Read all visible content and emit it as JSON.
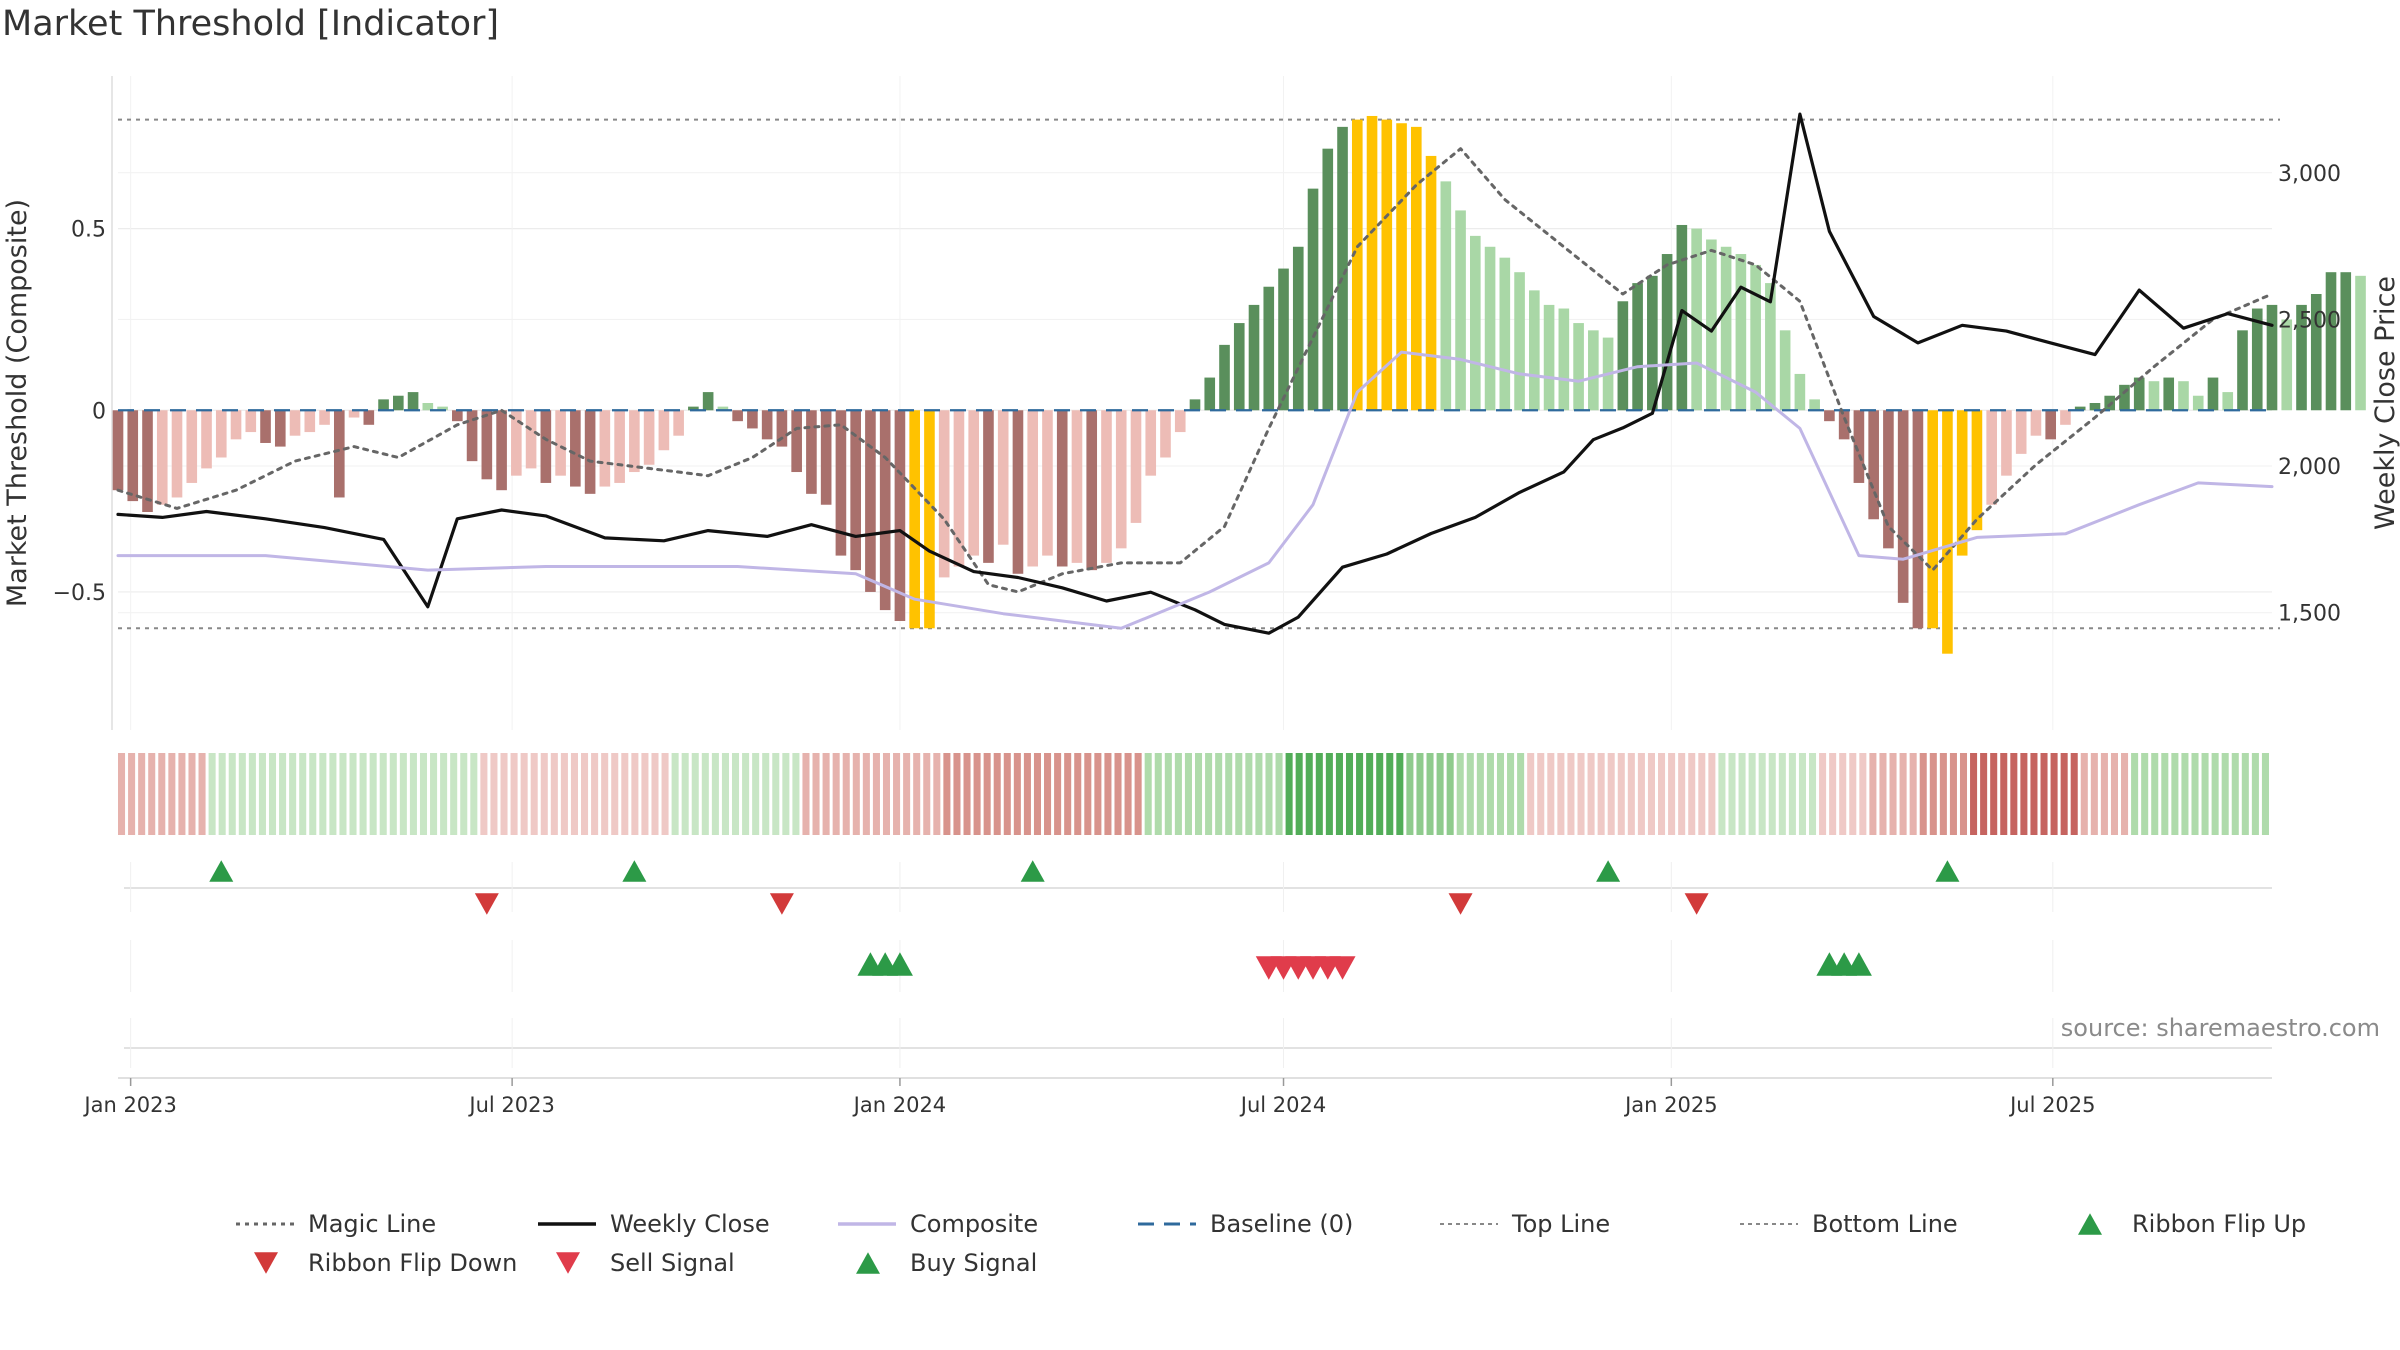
{
  "title": "Market Threshold [Indicator]",
  "source_text": "source: sharemaestro.com",
  "colors": {
    "up_strong": "#5a8f5c",
    "up_light": "#a9d7a6",
    "down_strong": "#a9706c",
    "down_light": "#edbcb6",
    "extreme": "#ffc200",
    "close": "#111111",
    "composite": "#c0b6e6",
    "magic": "#666666",
    "baseline": "#2f6a9c",
    "buy": "#2c9a47",
    "sell": "#d23a3a",
    "ribbon_green": [
      "#dff0dd",
      "#c8e6c5",
      "#afdbab",
      "#8fcb8d",
      "#52ad58"
    ],
    "ribbon_red": [
      "#f6dcda",
      "#efc9c6",
      "#e6b2ad",
      "#d8938c",
      "#c66460"
    ]
  },
  "chart_data": {
    "type": "bar",
    "subtype": "composite indicator histogram with price overlay, ribbon and signal strips",
    "xlabel": "",
    "ylabel_left": "Market Threshold (Composite)",
    "ylabel_right": "Weekly Close Price",
    "ylim_left": [
      -0.88,
      0.92
    ],
    "ylim_right": [
      1100,
      3330
    ],
    "x_range": [
      "2022-12-26",
      "2025-10-13"
    ],
    "x_ticks": [
      {
        "date": "2023-01-01",
        "label": "Jan 2023"
      },
      {
        "date": "2023-07-01",
        "label": "Jul 2023"
      },
      {
        "date": "2024-01-01",
        "label": "Jan 2024"
      },
      {
        "date": "2024-07-01",
        "label": "Jul 2024"
      },
      {
        "date": "2025-01-01",
        "label": "Jan 2025"
      },
      {
        "date": "2025-07-01",
        "label": "Jul 2025"
      }
    ],
    "y_ticks_left": [
      {
        "value": 0.5,
        "label": "0.5"
      },
      {
        "value": 0,
        "label": "0"
      },
      {
        "value": -0.5,
        "label": "−0.5"
      }
    ],
    "y_ticks_right": [
      {
        "value": 3000,
        "label": "3,000"
      },
      {
        "value": 2500,
        "label": "2,500"
      },
      {
        "value": 2000,
        "label": "2,000"
      },
      {
        "value": 1500,
        "label": "1,500"
      }
    ],
    "top_line": 0.8,
    "bottom_line": -0.6,
    "baseline": 0,
    "grid": true,
    "legend_position": "bottom",
    "series": [
      {
        "name": "Magic Line",
        "style": "dotted",
        "color": "#666666",
        "points": [
          [
            "2022-12-26",
            -0.22
          ],
          [
            "2023-01-23",
            -0.27
          ],
          [
            "2023-02-20",
            -0.22
          ],
          [
            "2023-03-20",
            -0.14
          ],
          [
            "2023-04-17",
            -0.1
          ],
          [
            "2023-05-08",
            -0.13
          ],
          [
            "2023-06-05",
            -0.04
          ],
          [
            "2023-06-26",
            0
          ],
          [
            "2023-07-17",
            -0.08
          ],
          [
            "2023-08-07",
            -0.14
          ],
          [
            "2023-09-04",
            -0.16
          ],
          [
            "2023-10-02",
            -0.18
          ],
          [
            "2023-10-23",
            -0.13
          ],
          [
            "2023-11-13",
            -0.05
          ],
          [
            "2023-12-04",
            -0.04
          ],
          [
            "2023-12-25",
            -0.13
          ],
          [
            "2024-01-22",
            -0.3
          ],
          [
            "2024-02-12",
            -0.48
          ],
          [
            "2024-02-26",
            -0.5
          ],
          [
            "2024-03-18",
            -0.45
          ],
          [
            "2024-04-15",
            -0.42
          ],
          [
            "2024-05-13",
            -0.42
          ],
          [
            "2024-06-03",
            -0.32
          ],
          [
            "2024-06-24",
            -0.05
          ],
          [
            "2024-07-15",
            0.2
          ],
          [
            "2024-08-05",
            0.45
          ],
          [
            "2024-09-02",
            0.62
          ],
          [
            "2024-09-23",
            0.72
          ],
          [
            "2024-10-14",
            0.58
          ],
          [
            "2024-11-11",
            0.45
          ],
          [
            "2024-12-09",
            0.32
          ],
          [
            "2024-12-30",
            0.4
          ],
          [
            "2025-01-20",
            0.44
          ],
          [
            "2025-02-10",
            0.4
          ],
          [
            "2025-03-03",
            0.3
          ],
          [
            "2025-03-24",
            -0.02
          ],
          [
            "2025-04-14",
            -0.32
          ],
          [
            "2025-05-05",
            -0.44
          ],
          [
            "2025-05-26",
            -0.3
          ],
          [
            "2025-06-23",
            -0.15
          ],
          [
            "2025-07-21",
            -0.02
          ],
          [
            "2025-08-18",
            0.12
          ],
          [
            "2025-09-15",
            0.25
          ],
          [
            "2025-10-13",
            0.32
          ]
        ]
      },
      {
        "name": "Weekly Close",
        "style": "solid",
        "color": "#111111",
        "points": [
          [
            "2022-12-26",
            1835
          ],
          [
            "2023-01-16",
            1825
          ],
          [
            "2023-02-06",
            1845
          ],
          [
            "2023-03-06",
            1820
          ],
          [
            "2023-04-03",
            1790
          ],
          [
            "2023-05-01",
            1750
          ],
          [
            "2023-05-22",
            1520
          ],
          [
            "2023-06-05",
            1820
          ],
          [
            "2023-06-26",
            1850
          ],
          [
            "2023-07-17",
            1830
          ],
          [
            "2023-08-14",
            1755
          ],
          [
            "2023-09-11",
            1745
          ],
          [
            "2023-10-02",
            1780
          ],
          [
            "2023-10-30",
            1760
          ],
          [
            "2023-11-20",
            1800
          ],
          [
            "2023-12-11",
            1760
          ],
          [
            "2024-01-01",
            1780
          ],
          [
            "2024-01-15",
            1710
          ],
          [
            "2024-02-05",
            1640
          ],
          [
            "2024-02-26",
            1620
          ],
          [
            "2024-03-18",
            1585
          ],
          [
            "2024-04-08",
            1540
          ],
          [
            "2024-04-29",
            1570
          ],
          [
            "2024-05-20",
            1510
          ],
          [
            "2024-06-03",
            1460
          ],
          [
            "2024-06-24",
            1430
          ],
          [
            "2024-07-08",
            1485
          ],
          [
            "2024-07-29",
            1655
          ],
          [
            "2024-08-19",
            1700
          ],
          [
            "2024-09-09",
            1770
          ],
          [
            "2024-09-30",
            1825
          ],
          [
            "2024-10-21",
            1910
          ],
          [
            "2024-11-11",
            1980
          ],
          [
            "2024-11-25",
            2090
          ],
          [
            "2024-12-09",
            2130
          ],
          [
            "2024-12-23",
            2180
          ],
          [
            "2025-01-06",
            2530
          ],
          [
            "2025-01-20",
            2460
          ],
          [
            "2025-02-03",
            2610
          ],
          [
            "2025-02-17",
            2560
          ],
          [
            "2025-03-03",
            3200
          ],
          [
            "2025-03-17",
            2800
          ],
          [
            "2025-04-07",
            2510
          ],
          [
            "2025-04-28",
            2420
          ],
          [
            "2025-05-19",
            2480
          ],
          [
            "2025-06-09",
            2460
          ],
          [
            "2025-06-30",
            2420
          ],
          [
            "2025-07-21",
            2380
          ],
          [
            "2025-08-11",
            2600
          ],
          [
            "2025-09-01",
            2470
          ],
          [
            "2025-09-22",
            2520
          ],
          [
            "2025-10-13",
            2480
          ]
        ]
      },
      {
        "name": "Composite",
        "style": "solid",
        "color": "#c0b6e6",
        "points": [
          [
            "2022-12-26",
            -0.4
          ],
          [
            "2023-03-06",
            -0.4
          ],
          [
            "2023-05-22",
            -0.44
          ],
          [
            "2023-07-17",
            -0.43
          ],
          [
            "2023-10-16",
            -0.43
          ],
          [
            "2023-12-11",
            -0.45
          ],
          [
            "2024-01-08",
            -0.52
          ],
          [
            "2024-02-19",
            -0.56
          ],
          [
            "2024-03-18",
            -0.58
          ],
          [
            "2024-04-15",
            -0.6
          ],
          [
            "2024-05-27",
            -0.5
          ],
          [
            "2024-06-24",
            -0.42
          ],
          [
            "2024-07-15",
            -0.26
          ],
          [
            "2024-08-05",
            0.05
          ],
          [
            "2024-08-26",
            0.16
          ],
          [
            "2024-09-23",
            0.14
          ],
          [
            "2024-10-21",
            0.1
          ],
          [
            "2024-11-18",
            0.08
          ],
          [
            "2024-12-16",
            0.12
          ],
          [
            "2025-01-13",
            0.13
          ],
          [
            "2025-02-10",
            0.05
          ],
          [
            "2025-03-03",
            -0.05
          ],
          [
            "2025-03-31",
            -0.4
          ],
          [
            "2025-04-21",
            -0.41
          ],
          [
            "2025-05-26",
            -0.35
          ],
          [
            "2025-07-07",
            -0.34
          ],
          [
            "2025-08-11",
            -0.26
          ],
          [
            "2025-09-08",
            -0.2
          ],
          [
            "2025-10-13",
            -0.21
          ]
        ]
      }
    ],
    "bars": {
      "start": "2022-12-26",
      "interval_days": 7,
      "values": [
        -0.22,
        -0.25,
        -0.28,
        -0.26,
        -0.24,
        -0.2,
        -0.16,
        -0.13,
        -0.08,
        -0.06,
        -0.09,
        -0.1,
        -0.07,
        -0.06,
        -0.04,
        -0.24,
        -0.02,
        -0.04,
        0.03,
        0.04,
        0.05,
        0.02,
        0.01,
        -0.03,
        -0.14,
        -0.19,
        -0.22,
        -0.18,
        -0.16,
        -0.2,
        -0.18,
        -0.21,
        -0.23,
        -0.21,
        -0.2,
        -0.17,
        -0.15,
        -0.11,
        -0.07,
        0.01,
        0.05,
        0.01,
        -0.03,
        -0.05,
        -0.08,
        -0.1,
        -0.17,
        -0.23,
        -0.26,
        -0.4,
        -0.44,
        -0.5,
        -0.55,
        -0.58,
        -0.6,
        -0.6,
        -0.46,
        -0.43,
        -0.4,
        -0.42,
        -0.37,
        -0.45,
        -0.43,
        -0.4,
        -0.43,
        -0.42,
        -0.44,
        -0.42,
        -0.38,
        -0.31,
        -0.18,
        -0.13,
        -0.06,
        0.03,
        0.09,
        0.18,
        0.24,
        0.29,
        0.34,
        0.39,
        0.45,
        0.61,
        0.72,
        0.78,
        0.8,
        0.81,
        0.8,
        0.79,
        0.78,
        0.7,
        0.63,
        0.55,
        0.48,
        0.45,
        0.42,
        0.38,
        0.33,
        0.29,
        0.28,
        0.24,
        0.22,
        0.2,
        0.3,
        0.35,
        0.37,
        0.43,
        0.51,
        0.5,
        0.47,
        0.45,
        0.43,
        0.4,
        0.35,
        0.22,
        0.1,
        0.03,
        -0.03,
        -0.08,
        -0.2,
        -0.3,
        -0.38,
        -0.53,
        -0.6,
        -0.6,
        -0.67,
        -0.4,
        -0.33,
        -0.26,
        -0.18,
        -0.12,
        -0.07,
        -0.08,
        -0.04,
        0.01,
        0.02,
        0.04,
        0.07,
        0.09,
        0.08,
        0.09,
        0.08,
        0.04,
        0.09,
        0.05,
        0.22,
        0.28,
        0.29,
        0.25,
        0.29,
        0.32,
        0.38,
        0.38,
        0.37
      ],
      "extreme_indices": [
        54,
        55,
        84,
        85,
        86,
        87,
        88,
        89,
        123,
        124,
        125,
        126
      ]
    },
    "ribbon": {
      "blocks": [
        {
          "start": 0,
          "count": 9,
          "color": "red",
          "level": 2
        },
        {
          "start": 9,
          "count": 27,
          "color": "green",
          "level": 1
        },
        {
          "start": 36,
          "count": 19,
          "color": "red",
          "level": 1
        },
        {
          "start": 55,
          "count": 13,
          "color": "green",
          "level": 1
        },
        {
          "start": 68,
          "count": 14,
          "color": "red",
          "level": 2
        },
        {
          "start": 82,
          "count": 20,
          "color": "red",
          "level": 3
        },
        {
          "start": 102,
          "count": 14,
          "color": "green",
          "level": 2
        },
        {
          "start": 116,
          "count": 12,
          "color": "green",
          "level": 4
        },
        {
          "start": 128,
          "count": 5,
          "color": "green",
          "level": 3
        },
        {
          "start": 133,
          "count": 7,
          "color": "green",
          "level": 2
        },
        {
          "start": 140,
          "count": 19,
          "color": "red",
          "level": 1
        },
        {
          "start": 159,
          "count": 10,
          "color": "green",
          "level": 1
        },
        {
          "start": 169,
          "count": 5,
          "color": "red",
          "level": 1
        },
        {
          "start": 174,
          "count": 5,
          "color": "red",
          "level": 2
        },
        {
          "start": 179,
          "count": 5,
          "color": "red",
          "level": 3
        },
        {
          "start": 184,
          "count": 11,
          "color": "red",
          "level": 4
        },
        {
          "start": 195,
          "count": 5,
          "color": "red",
          "level": 2
        },
        {
          "start": 200,
          "count": 14,
          "color": "green",
          "level": 2
        }
      ]
    },
    "ribbon_flip_up": [
      "2023-02-13",
      "2023-08-28",
      "2024-03-04",
      "2024-12-02",
      "2025-05-12"
    ],
    "ribbon_flip_down": [
      "2023-06-19",
      "2023-11-06",
      "2024-09-23",
      "2025-01-13"
    ],
    "buy_signals": [
      "2023-12-18",
      "2023-12-25",
      "2024-01-01",
      "2025-03-17",
      "2025-03-24",
      "2025-03-31"
    ],
    "sell_signals": [
      "2024-06-24",
      "2024-07-01",
      "2024-07-08",
      "2024-07-15",
      "2024-07-22",
      "2024-07-29"
    ]
  },
  "legend": [
    {
      "label": "Magic Line",
      "symbol": "dotted",
      "color": "#666666"
    },
    {
      "label": "Weekly Close",
      "symbol": "solid",
      "color": "#111111"
    },
    {
      "label": "Composite",
      "symbol": "solid",
      "color": "#c0b6e6"
    },
    {
      "label": "Baseline (0)",
      "symbol": "dashed",
      "color": "#2f6a9c"
    },
    {
      "label": "Top Line",
      "symbol": "dotted-thin",
      "color": "#888888"
    },
    {
      "label": "Bottom Line",
      "symbol": "dotted-thin",
      "color": "#888888"
    },
    {
      "label": "Ribbon Flip Up",
      "symbol": "triangle-up",
      "color": "#2c9a47"
    },
    {
      "label": "Ribbon Flip Down",
      "symbol": "triangle-down",
      "color": "#d23a3a"
    },
    {
      "label": "Sell Signal",
      "symbol": "triangle-down",
      "color": "#e03c4b"
    },
    {
      "label": "Buy Signal",
      "symbol": "triangle-up",
      "color": "#2c9a47"
    }
  ]
}
